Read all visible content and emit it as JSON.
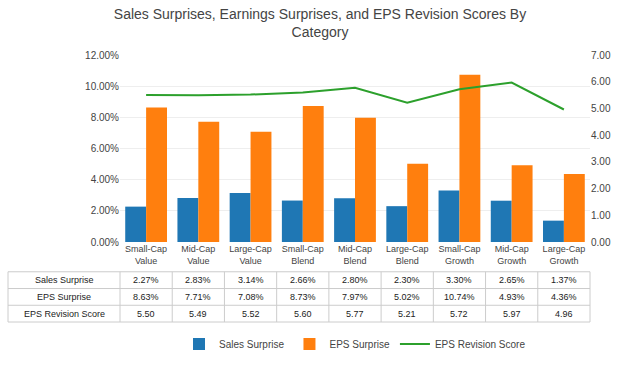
{
  "chart_data": {
    "type": "bar",
    "title": "Sales Surprises, Earnings Surprises, and EPS Revision Scores By\nCategory",
    "categories": [
      "Small-Cap\nValue",
      "Mid-Cap\nValue",
      "Large-Cap\nValue",
      "Small-Cap\nBlend",
      "Mid-Cap\nBlend",
      "Large-Cap\nBlend",
      "Small-Cap\nGrowth",
      "Mid-Cap\nGrowth",
      "Large-Cap\nGrowth"
    ],
    "series": [
      {
        "name": "Sales Surprise",
        "type": "bar",
        "values": [
          2.27,
          2.83,
          3.14,
          2.66,
          2.8,
          2.3,
          3.3,
          2.65,
          1.37
        ],
        "value_labels": [
          "2.27%",
          "2.83%",
          "3.14%",
          "2.66%",
          "2.80%",
          "2.30%",
          "3.30%",
          "2.65%",
          "1.37%"
        ]
      },
      {
        "name": "EPS Surprise",
        "type": "bar",
        "values": [
          8.63,
          7.71,
          7.08,
          8.73,
          7.97,
          5.02,
          10.74,
          4.93,
          4.36
        ],
        "value_labels": [
          "8.63%",
          "7.71%",
          "7.08%",
          "8.73%",
          "7.97%",
          "5.02%",
          "10.74%",
          "4.93%",
          "4.36%"
        ]
      },
      {
        "name": "EPS Revision Score",
        "type": "line",
        "axis": "y2",
        "values": [
          5.5,
          5.49,
          5.52,
          5.6,
          5.77,
          5.21,
          5.72,
          5.97,
          4.96
        ],
        "value_labels": [
          "5.50",
          "5.49",
          "5.52",
          "5.60",
          "5.77",
          "5.21",
          "5.72",
          "5.97",
          "4.96"
        ]
      }
    ],
    "ylim": [
      0,
      12
    ],
    "yticks": [
      {
        "value": 0,
        "label": "0.00%"
      },
      {
        "value": 2,
        "label": "2.00%"
      },
      {
        "value": 4,
        "label": "4.00%"
      },
      {
        "value": 6,
        "label": "6.00%"
      },
      {
        "value": 8,
        "label": "8.00%"
      },
      {
        "value": 10,
        "label": "10.00%"
      },
      {
        "value": 12,
        "label": "12.00%"
      }
    ],
    "y2lim": [
      0,
      7
    ],
    "y2ticks": [
      {
        "value": 0,
        "label": "0.00"
      },
      {
        "value": 1,
        "label": "1.00"
      },
      {
        "value": 2,
        "label": "2.00"
      },
      {
        "value": 3,
        "label": "3.00"
      },
      {
        "value": 4,
        "label": "4.00"
      },
      {
        "value": 5,
        "label": "5.00"
      },
      {
        "value": 6,
        "label": "6.00"
      },
      {
        "value": 7,
        "label": "7.00"
      }
    ],
    "grid": true,
    "legend": "bottom"
  }
}
